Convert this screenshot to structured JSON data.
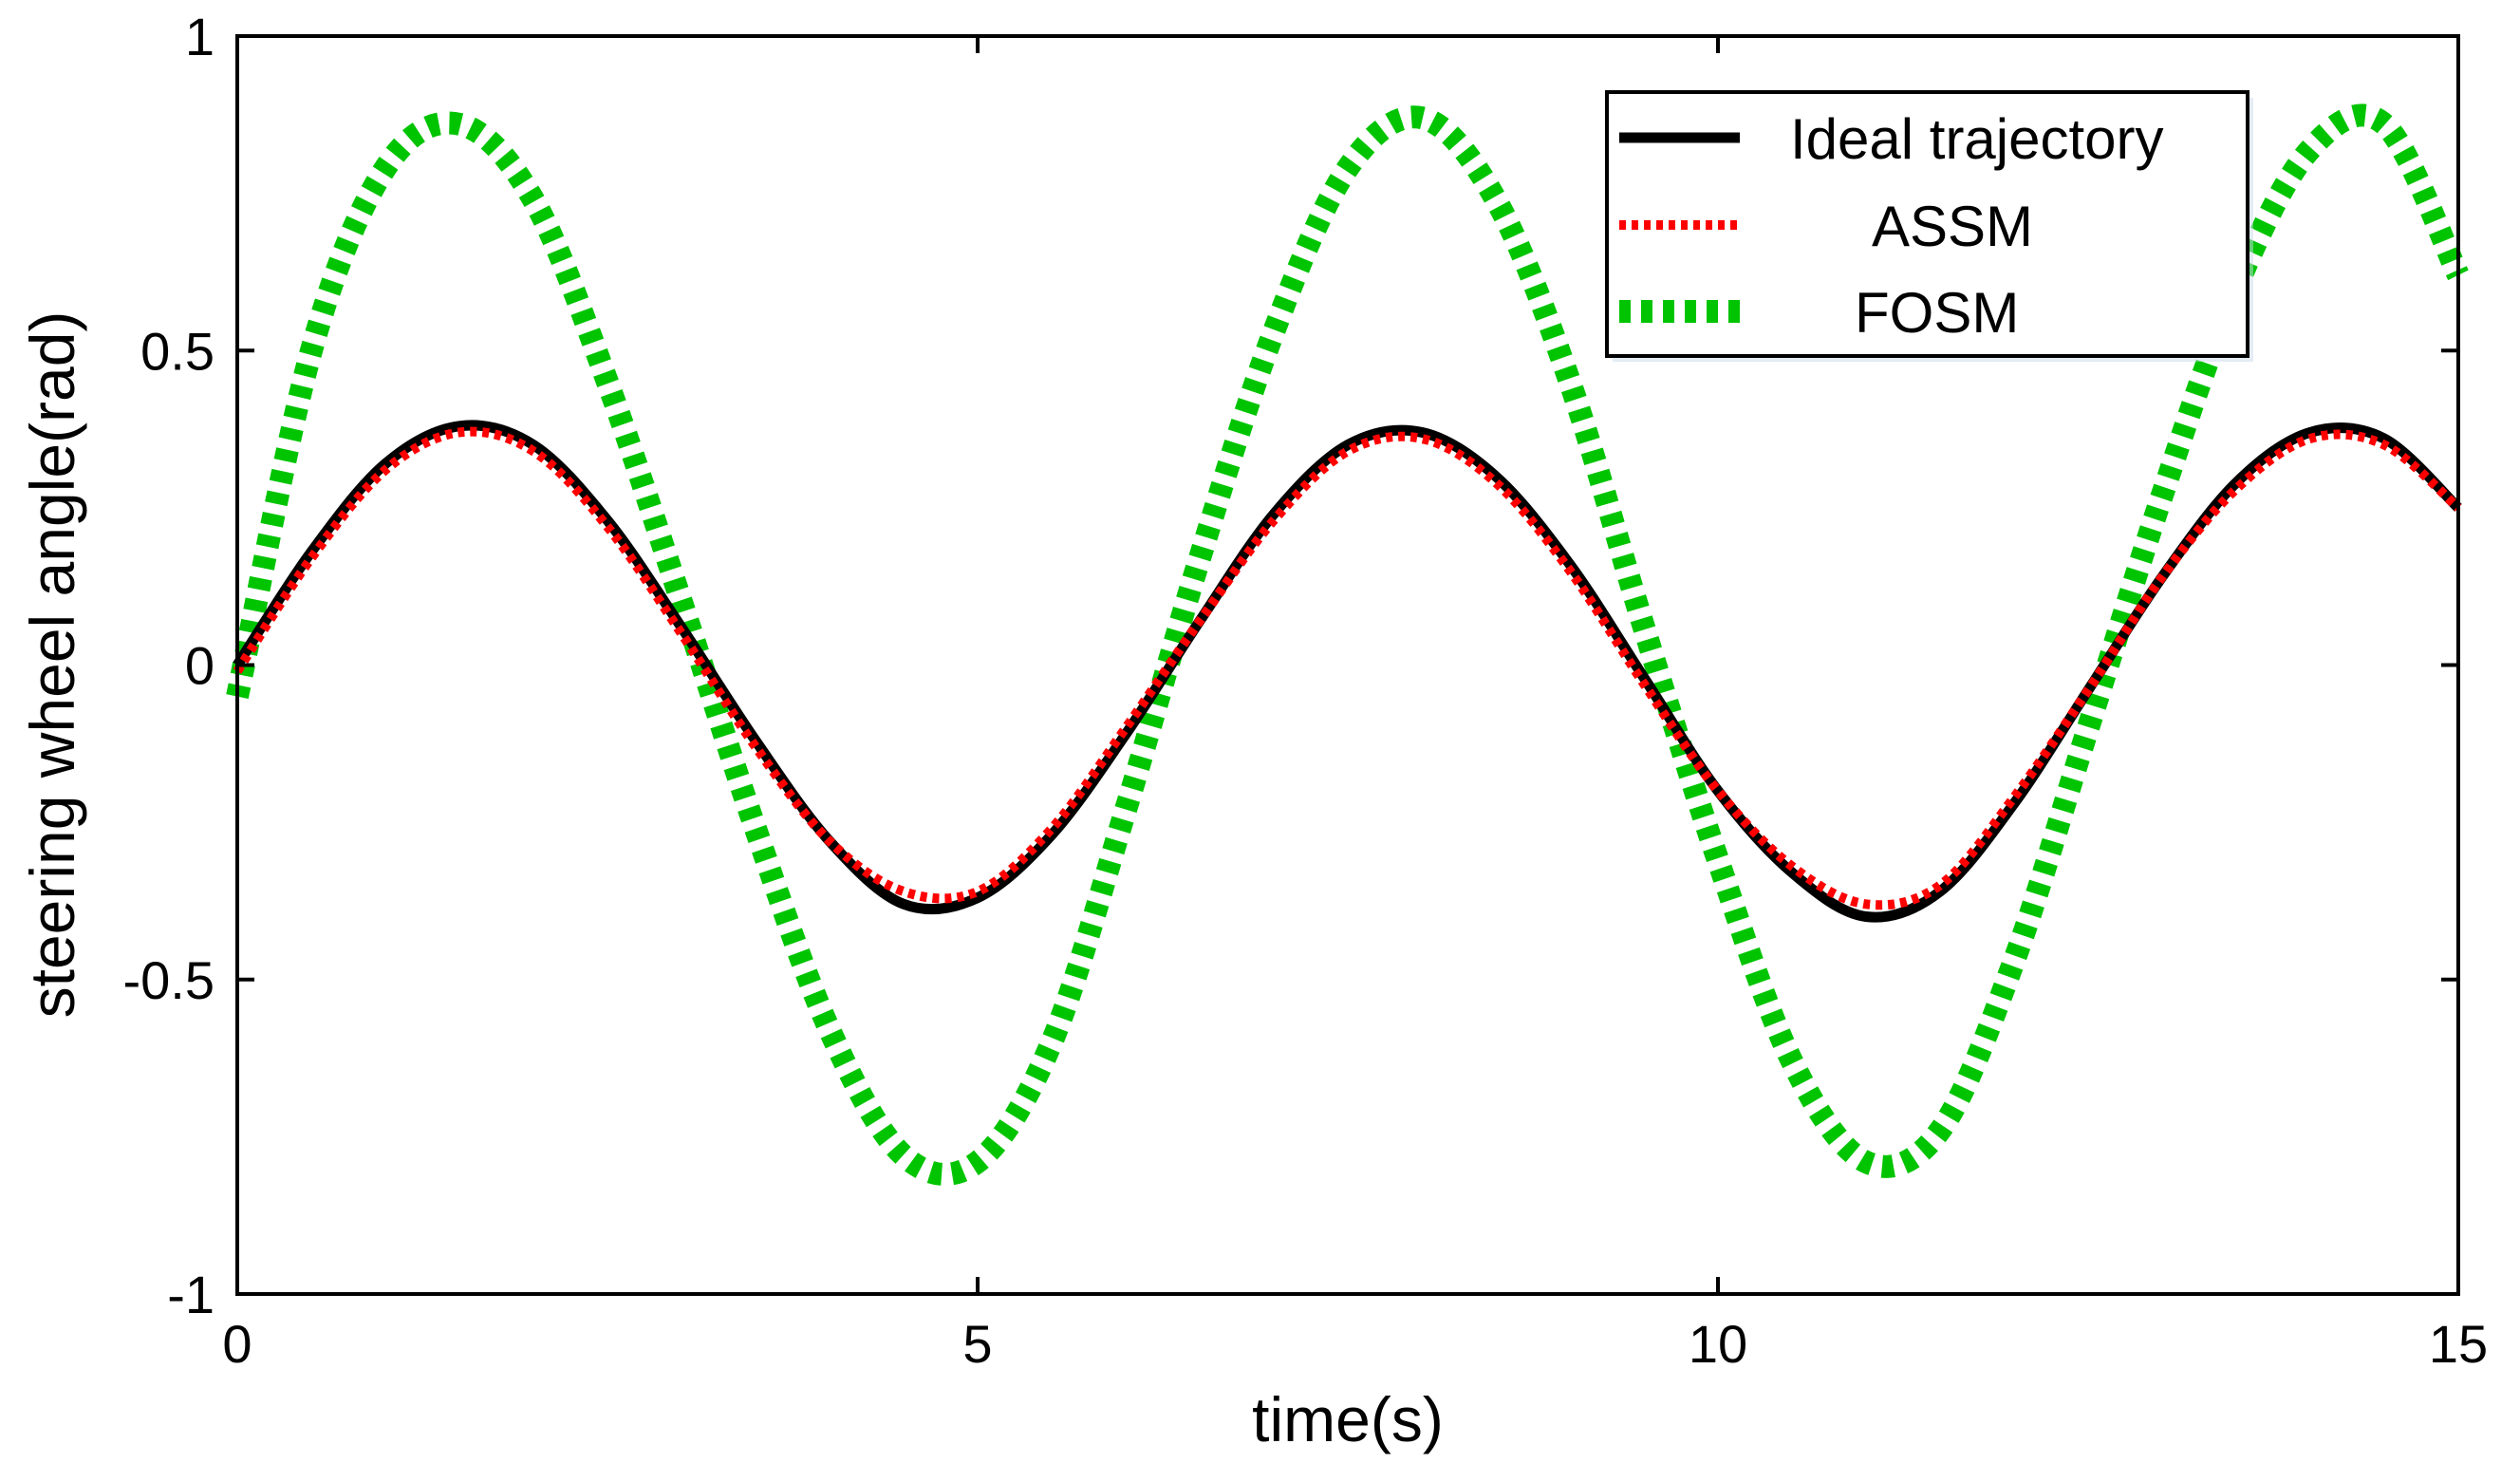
{
  "chart_data": {
    "type": "line",
    "xlabel": "time(s)",
    "ylabel": "steering  wheel angle(rad)",
    "xlim": [
      0,
      15
    ],
    "ylim": [
      -1,
      1
    ],
    "xticks": [
      "0",
      "5",
      "10",
      "15"
    ],
    "xtick_values": [
      0,
      5,
      10,
      15
    ],
    "yticks": [
      "-1",
      "-0.5",
      "0",
      "0.5",
      "1"
    ],
    "ytick_values": [
      -1,
      -0.5,
      0,
      0.5,
      1
    ],
    "grid": false,
    "legend_position": "top-right",
    "x": [
      0,
      0.5,
      1,
      1.5,
      2,
      2.5,
      3,
      3.5,
      4,
      4.5,
      5,
      5.5,
      6,
      6.5,
      7,
      7.5,
      8,
      8.5,
      9,
      9.5,
      10,
      10.5,
      11,
      11.5,
      12,
      12.5,
      13,
      13.5,
      14,
      14.5,
      15
    ],
    "series": [
      {
        "name": "Ideal trajectory",
        "color": "#000000",
        "style": "solid",
        "values": [
          0.0,
          0.18,
          0.32,
          0.38,
          0.35,
          0.23,
          0.06,
          -0.12,
          -0.28,
          -0.38,
          -0.37,
          -0.27,
          -0.11,
          0.07,
          0.24,
          0.35,
          0.37,
          0.3,
          0.16,
          -0.02,
          -0.2,
          -0.33,
          -0.4,
          -0.36,
          -0.22,
          -0.04,
          0.14,
          0.29,
          0.37,
          0.36,
          0.25
        ]
      },
      {
        "name": "ASSM",
        "color": "#ff0000",
        "style": "dotted",
        "values": [
          -0.01,
          0.17,
          0.31,
          0.37,
          0.34,
          0.22,
          0.05,
          -0.13,
          -0.28,
          -0.36,
          -0.36,
          -0.26,
          -0.1,
          0.07,
          0.23,
          0.34,
          0.36,
          0.29,
          0.15,
          -0.03,
          -0.2,
          -0.32,
          -0.38,
          -0.35,
          -0.21,
          -0.04,
          0.14,
          0.28,
          0.36,
          0.35,
          0.25
        ]
      },
      {
        "name": "FOSM",
        "color": "#00c400",
        "style": "dashed",
        "values": [
          -0.05,
          0.5,
          0.79,
          0.86,
          0.74,
          0.45,
          0.1,
          -0.26,
          -0.58,
          -0.78,
          -0.79,
          -0.6,
          -0.23,
          0.17,
          0.53,
          0.79,
          0.87,
          0.74,
          0.45,
          0.06,
          -0.31,
          -0.63,
          -0.79,
          -0.74,
          -0.47,
          -0.1,
          0.27,
          0.6,
          0.82,
          0.86,
          0.62
        ]
      }
    ]
  }
}
